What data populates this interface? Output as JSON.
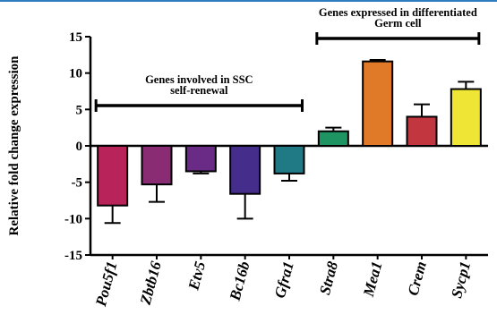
{
  "chart_data": {
    "type": "bar",
    "ylabel": "Relative fold change expression",
    "xlabel": "",
    "ylim": [
      -15,
      15
    ],
    "yticks": [
      15,
      10,
      5,
      0,
      -5,
      -10,
      -15
    ],
    "grid": false,
    "categories": [
      "Pou5f1",
      "Zbtb16",
      "Etv5",
      "Bc16b",
      "Gfra1",
      "Stra8",
      "Mea1",
      "Crem",
      "Sycp1"
    ],
    "values": [
      -8.2,
      -5.3,
      -3.5,
      -6.6,
      -3.8,
      2.0,
      11.6,
      4.0,
      7.8
    ],
    "errors": [
      2.4,
      2.4,
      0.3,
      3.4,
      1.0,
      0.5,
      0.2,
      1.7,
      1.0
    ],
    "colors": [
      "#b8245a",
      "#8a2c74",
      "#6a2b86",
      "#452d8c",
      "#1f7a86",
      "#1f9463",
      "#e07928",
      "#c23640",
      "#efe534"
    ],
    "annotations": [
      {
        "lines": [
          "Genes involved in SSC",
          "self-renewal"
        ],
        "from": 0,
        "to": 4
      },
      {
        "lines": [
          "Genes expressed in differentiated",
          "Germ cell"
        ],
        "from": 5,
        "to": 8
      }
    ]
  }
}
